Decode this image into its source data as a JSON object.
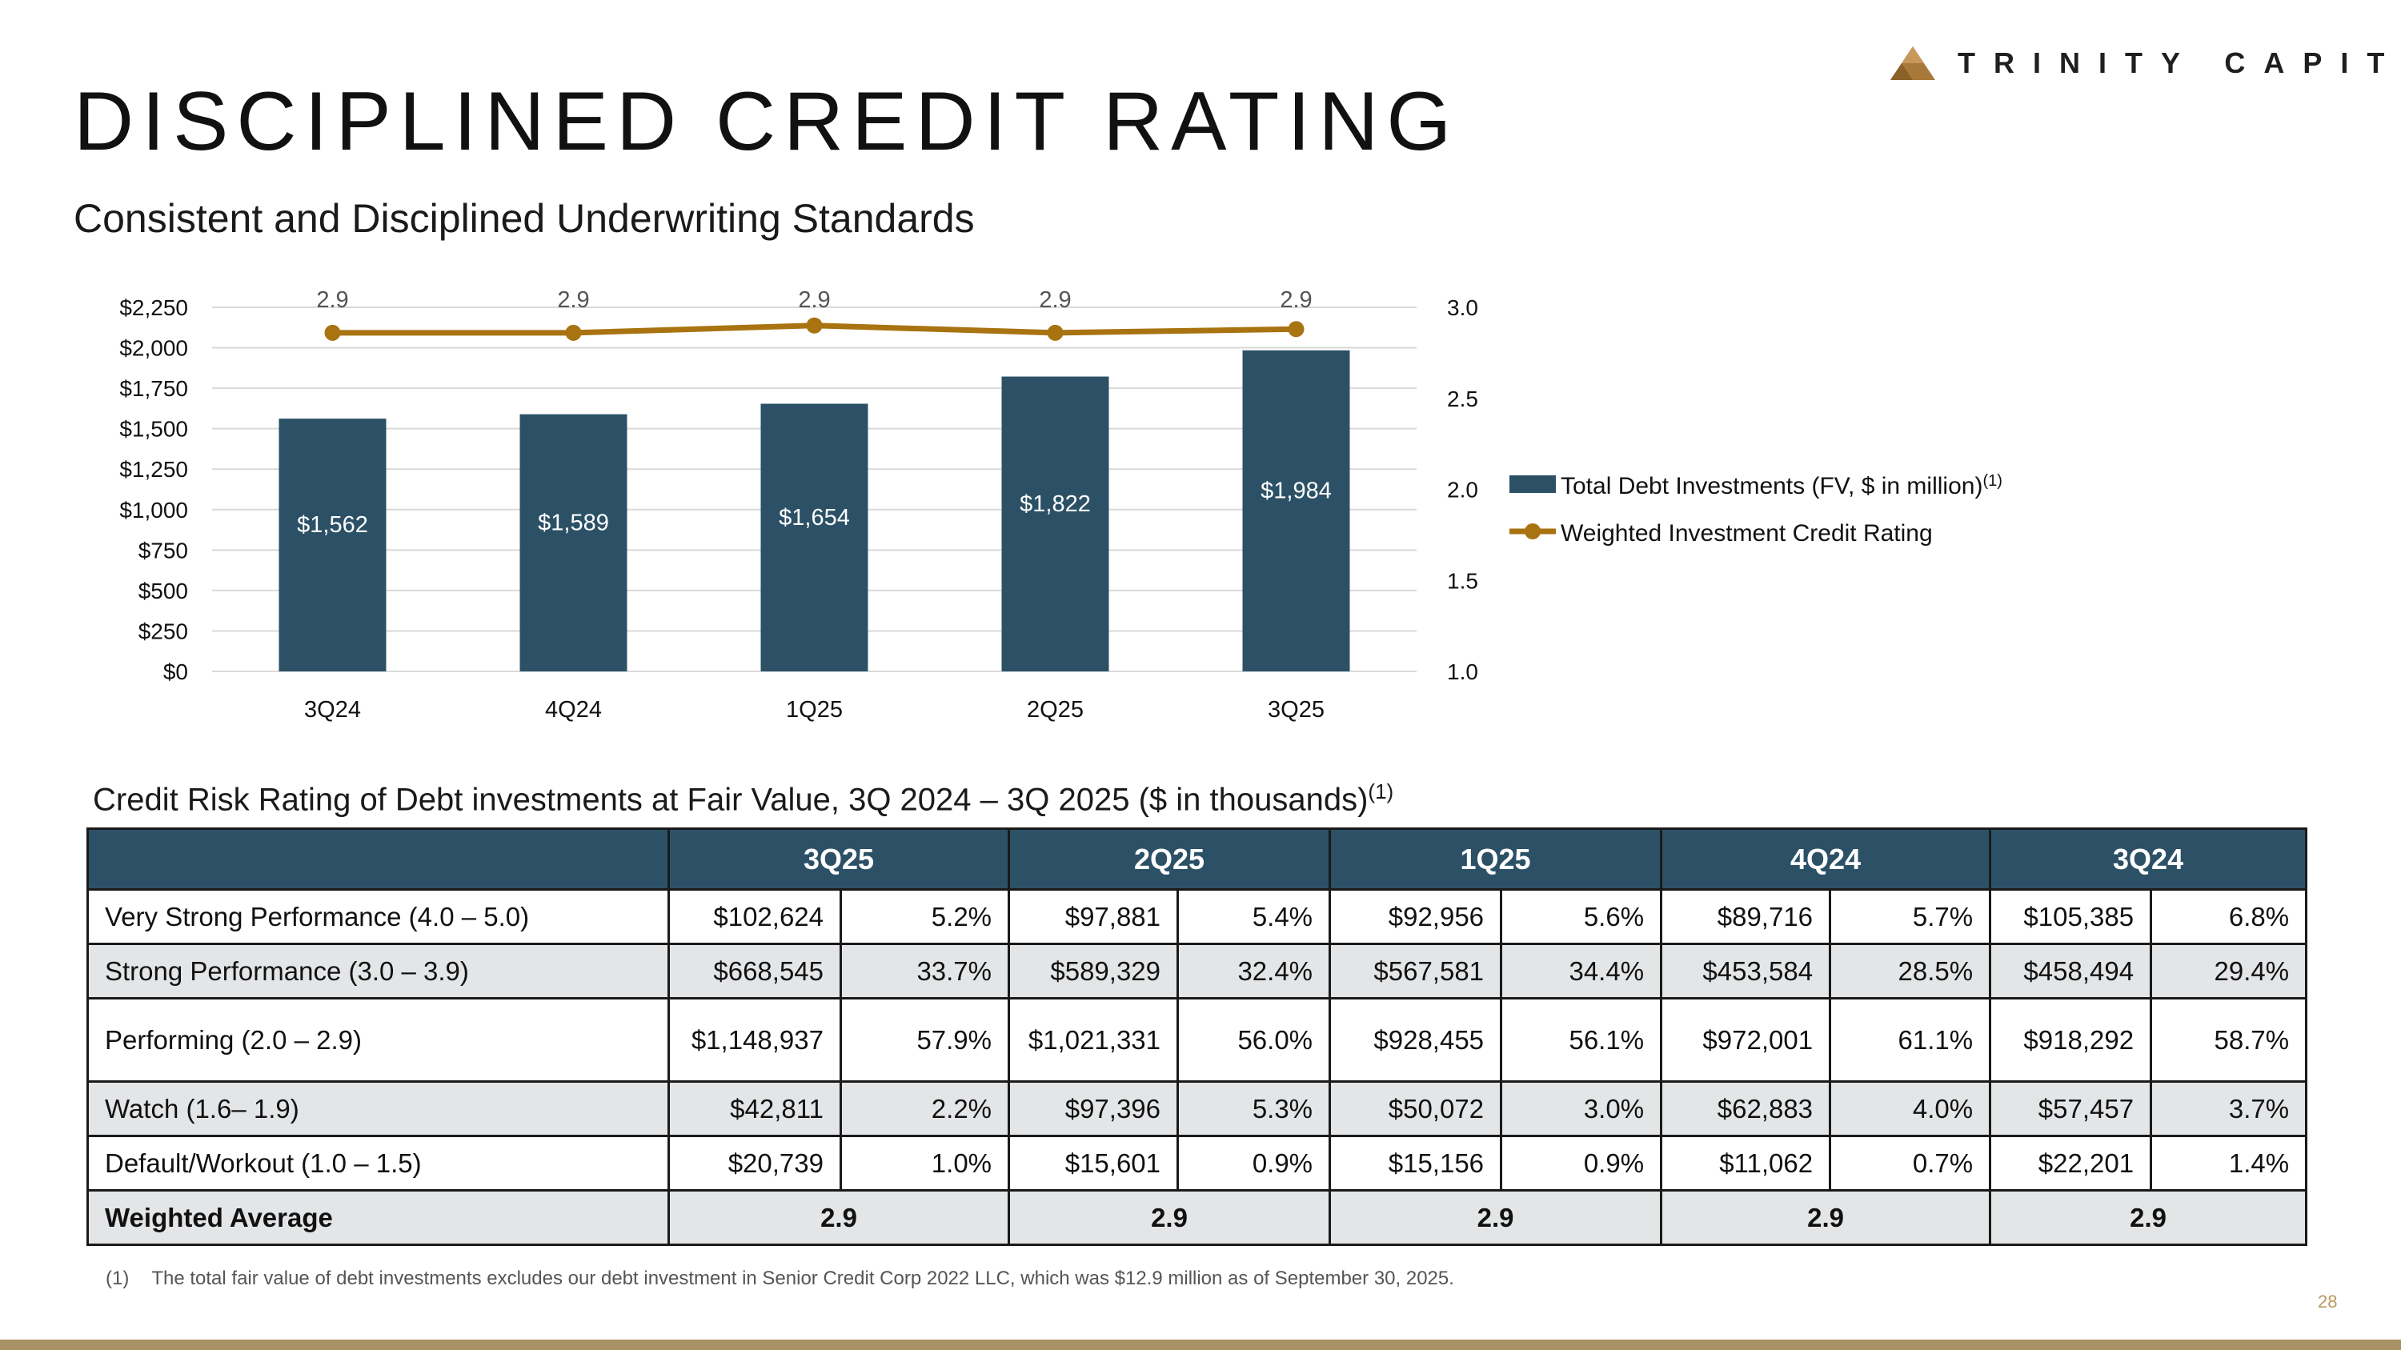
{
  "logo": {
    "text": "TRINITY CAPITAL"
  },
  "title": "DISCIPLINED CREDIT RATING",
  "subtitle": "Consistent and Disciplined Underwriting Standards",
  "colors": {
    "bar": "#2c5166",
    "line": "#a87310",
    "grid": "#d9d9d9",
    "header_bg": "#2c5166",
    "alt_row": "#e3e5e7",
    "footer_bar": "#a89165"
  },
  "chart_data": {
    "type": "bar",
    "categories": [
      "3Q24",
      "4Q24",
      "1Q25",
      "2Q25",
      "3Q25"
    ],
    "series": [
      {
        "name": "Total Debt Investments (FV, $ in million)",
        "name_sup": "(1)",
        "type": "bar",
        "axis": "left",
        "values": [
          1562,
          1589,
          1654,
          1822,
          1984
        ],
        "labels": [
          "$1,562",
          "$1,589",
          "$1,654",
          "$1,822",
          "$1,984"
        ]
      },
      {
        "name": "Weighted Investment Credit Rating",
        "type": "line",
        "axis": "right",
        "values": [
          2.86,
          2.86,
          2.9,
          2.86,
          2.88
        ],
        "labels": [
          "2.9",
          "2.9",
          "2.9",
          "2.9",
          "2.9"
        ]
      }
    ],
    "y_left": {
      "lim": [
        0,
        2250
      ],
      "ticks": [
        "$0",
        "$250",
        "$500",
        "$750",
        "$1,000",
        "$1,250",
        "$1,500",
        "$1,750",
        "$2,000",
        "$2,250"
      ]
    },
    "y_right": {
      "lim": [
        1.0,
        3.0
      ],
      "ticks": [
        "1.0",
        "1.5",
        "2.0",
        "2.5",
        "3.0"
      ]
    },
    "grid": true,
    "legend_position": "right"
  },
  "table": {
    "caption": "Credit Risk Rating of Debt investments at Fair Value, 3Q 2024 – 3Q 2025 ($ in thousands)",
    "caption_sup": "(1)",
    "periods": [
      "3Q25",
      "2Q25",
      "1Q25",
      "4Q24",
      "3Q24"
    ],
    "rows": [
      {
        "label": "Very Strong Performance (4.0 – 5.0)",
        "cells": [
          "$102,624",
          "5.2%",
          "$97,881",
          "5.4%",
          "$92,956",
          "5.6%",
          "$89,716",
          "5.7%",
          "$105,385",
          "6.8%"
        ]
      },
      {
        "label": "Strong Performance (3.0 – 3.9)",
        "cells": [
          "$668,545",
          "33.7%",
          "$589,329",
          "32.4%",
          "$567,581",
          "34.4%",
          "$453,584",
          "28.5%",
          "$458,494",
          "29.4%"
        ]
      },
      {
        "label": "Performing (2.0 – 2.9)",
        "cells": [
          "$1,148,937",
          "57.9%",
          "$1,021,331",
          "56.0%",
          "$928,455",
          "56.1%",
          "$972,001",
          "61.1%",
          "$918,292",
          "58.7%"
        ]
      },
      {
        "label": "Watch (1.6– 1.9)",
        "cells": [
          "$42,811",
          "2.2%",
          "$97,396",
          "5.3%",
          "$50,072",
          "3.0%",
          "$62,883",
          "4.0%",
          "$57,457",
          "3.7%"
        ]
      },
      {
        "label": "Default/Workout (1.0 – 1.5)",
        "cells": [
          "$20,739",
          "1.0%",
          "$15,601",
          "0.9%",
          "$15,156",
          "0.9%",
          "$11,062",
          "0.7%",
          "$22,201",
          "1.4%"
        ]
      }
    ],
    "weighted": {
      "label": "Weighted Average",
      "values": [
        "2.9",
        "2.9",
        "2.9",
        "2.9",
        "2.9"
      ]
    }
  },
  "footnote": {
    "num": "(1)",
    "text": "The total fair value of debt investments excludes our debt investment in Senior Credit Corp 2022 LLC, which was $12.9 million as of September 30, 2025."
  },
  "page_number": "28"
}
